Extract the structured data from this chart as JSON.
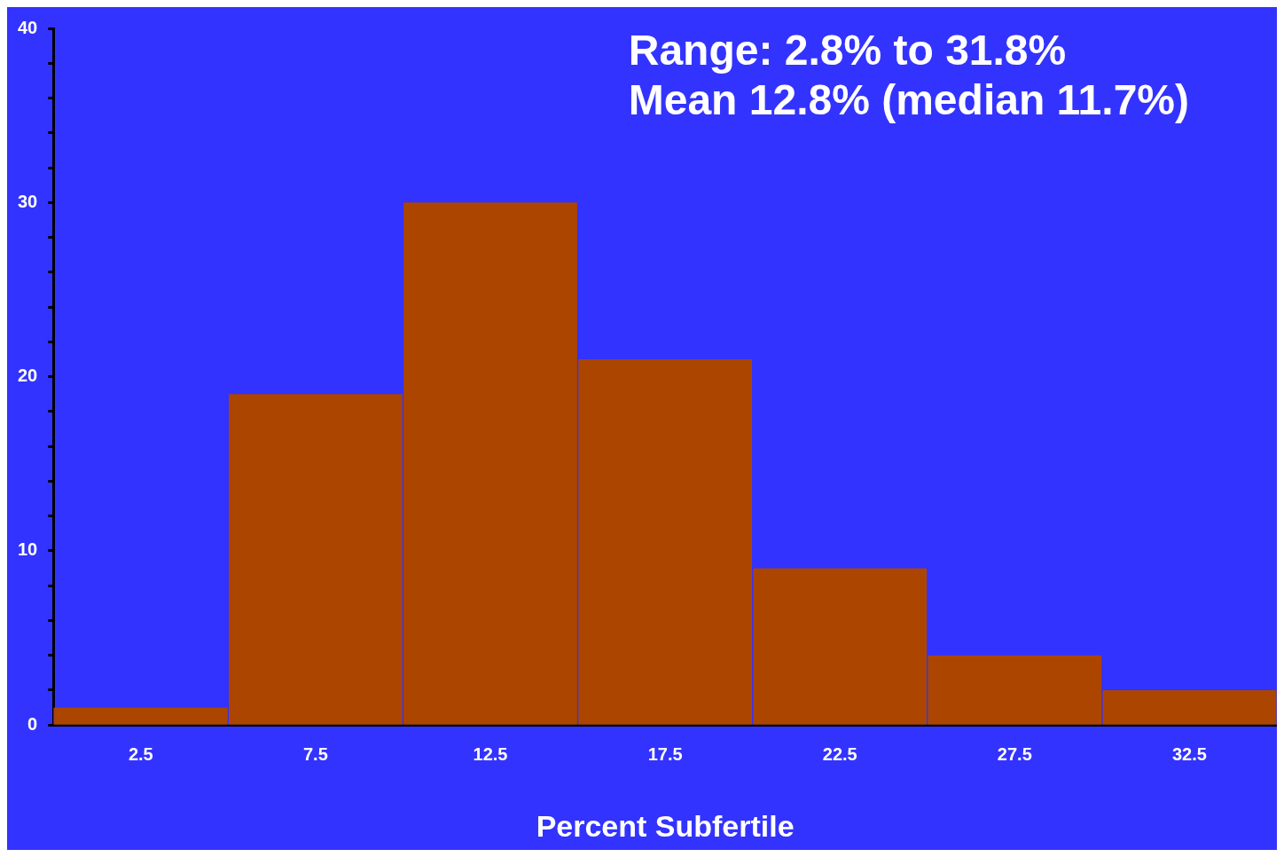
{
  "chart_data": {
    "type": "histogram",
    "xlabel": "Percent Subfertile",
    "annotations": [
      "Range: 2.8% to 31.8%",
      "Mean 12.8% (median 11.7%)"
    ],
    "bins": [
      0,
      5,
      10,
      15,
      20,
      25,
      30,
      35
    ],
    "values": [
      1,
      19,
      30,
      21,
      9,
      4,
      2
    ],
    "color": "#ab4500",
    "xlim": [
      0,
      35
    ],
    "xticks": [
      2.5,
      7.5,
      12.5,
      17.5,
      22.5,
      27.5,
      32.5
    ],
    "ylim": [
      0,
      40
    ],
    "yticks": [
      0,
      {
        "value": 2,
        "label": null
      },
      {
        "value": 4,
        "label": null
      },
      {
        "value": 6,
        "label": null
      },
      {
        "value": 8,
        "label": null
      },
      10,
      {
        "value": 12,
        "label": null
      },
      {
        "value": 14,
        "label": null
      },
      {
        "value": 16,
        "label": null
      },
      {
        "value": 18,
        "label": null
      },
      20,
      {
        "value": 22,
        "label": null
      },
      {
        "value": 24,
        "label": null
      },
      {
        "value": 26,
        "label": null
      },
      {
        "value": 28,
        "label": null
      },
      30,
      {
        "value": 32,
        "label": null
      },
      {
        "value": 34,
        "label": null
      },
      {
        "value": 36,
        "label": null
      },
      {
        "value": 38,
        "label": null
      },
      40
    ],
    "grid": false,
    "legend": false
  }
}
